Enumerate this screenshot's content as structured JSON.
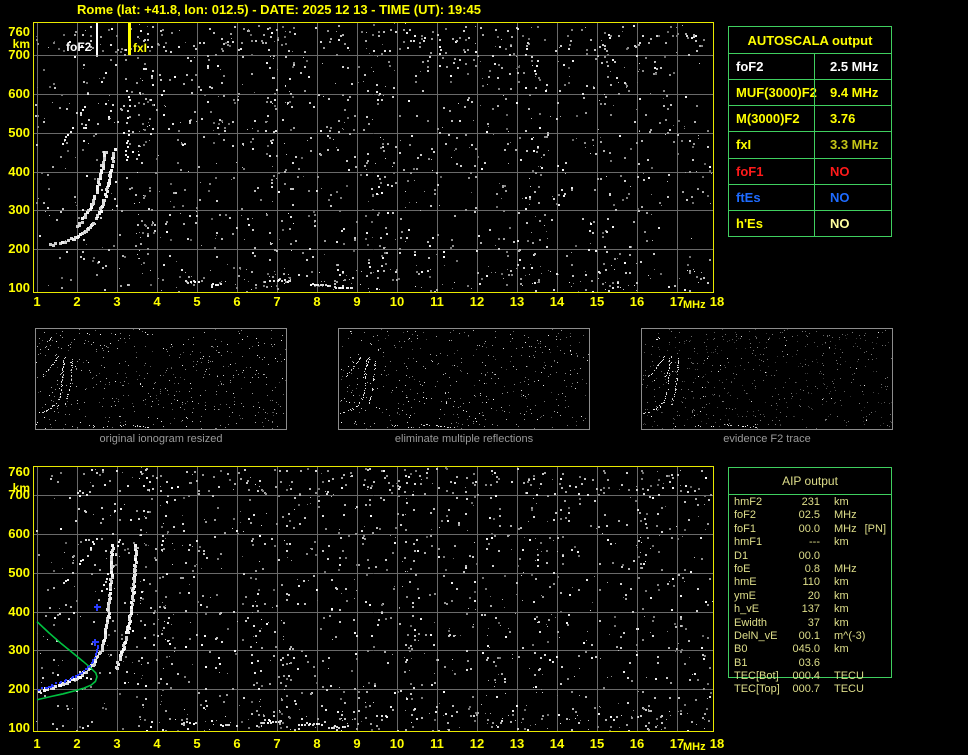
{
  "title": "Rome (lat: +41.8, lon: 012.5) - DATE: 2025 12 13 - TIME (UT): 19:45",
  "colors": {
    "accent_yellow": "#ffff00",
    "plot_border": "#e9e900",
    "grid": "#6a6a6a",
    "table_border": "#3fcf5f",
    "aip_text": "#dede8a",
    "profile_green": "#00c040",
    "scaled_blue": "#2a3cff",
    "caption_gray": "#9a9a9a"
  },
  "plots": {
    "x_ticks": [
      "1",
      "2",
      "3",
      "4",
      "5",
      "6",
      "7",
      "8",
      "9",
      "10",
      "11",
      "12",
      "13",
      "14",
      "15",
      "16",
      "17",
      "18"
    ],
    "x_unit": "MHz",
    "y_ticks": [
      "760",
      "700",
      "600",
      "500",
      "400",
      "300",
      "200",
      "100"
    ],
    "y_unit": "km",
    "top": {
      "markers": [
        {
          "label": "foF2",
          "freq": 2.5,
          "color": "#ffffff",
          "width": 2
        },
        {
          "label": "fxI",
          "freq": 3.3,
          "color": "#ffff00",
          "width": 3
        }
      ],
      "noise_seed": 1337,
      "traces": [
        {
          "w": 3,
          "points": [
            [
              1.32,
              214
            ],
            [
              1.6,
              220
            ],
            [
              1.9,
              230
            ],
            [
              2.15,
              246
            ],
            [
              2.35,
              268
            ],
            [
              2.52,
              296
            ],
            [
              2.66,
              330
            ],
            [
              2.76,
              372
            ],
            [
              2.84,
              420
            ],
            [
              2.9,
              462
            ]
          ]
        },
        {
          "w": 3,
          "points": [
            [
              1.98,
              262
            ],
            [
              2.18,
              288
            ],
            [
              2.36,
              322
            ],
            [
              2.5,
              366
            ],
            [
              2.61,
              418
            ],
            [
              2.68,
              455
            ]
          ]
        },
        {
          "w": 2,
          "dotted": true,
          "points": [
            [
              1.52,
              455
            ],
            [
              1.76,
              496
            ],
            [
              2.0,
              538
            ],
            [
              2.27,
              585
            ]
          ]
        },
        {
          "w": 2,
          "dotted": true,
          "points": [
            [
              2.74,
              533
            ],
            [
              2.82,
              560
            ],
            [
              2.9,
              590
            ]
          ]
        },
        {
          "w": 2,
          "dotted": true,
          "points": [
            [
              3.22,
              432
            ],
            [
              3.25,
              505
            ],
            [
              3.27,
              558
            ],
            [
              3.29,
              596
            ]
          ]
        },
        {
          "w": 2,
          "dotted": true,
          "points": [
            [
              2.14,
              505
            ],
            [
              2.26,
              536
            ]
          ]
        },
        {
          "w": 2,
          "points": [
            [
              4.7,
              118
            ],
            [
              5.05,
              118
            ]
          ]
        },
        {
          "w": 2,
          "points": [
            [
              5.35,
              112
            ],
            [
              5.6,
              112
            ]
          ]
        },
        {
          "w": 2,
          "points": [
            [
              6.7,
              121
            ],
            [
              7.3,
              121
            ]
          ]
        },
        {
          "w": 2,
          "points": [
            [
              7.8,
              112
            ],
            [
              8.3,
              109
            ]
          ]
        },
        {
          "w": 2,
          "points": [
            [
              8.4,
              104
            ],
            [
              8.85,
              104
            ]
          ]
        }
      ]
    },
    "bottom": {
      "noise_seed": 4242,
      "traces": [
        {
          "w": 3,
          "points": [
            [
              1.05,
              198
            ],
            [
              1.35,
              207
            ],
            [
              1.65,
              217
            ],
            [
              1.95,
              231
            ],
            [
              2.2,
              249
            ],
            [
              2.4,
              271
            ],
            [
              2.55,
              299
            ],
            [
              2.66,
              336
            ],
            [
              2.74,
              388
            ],
            [
              2.79,
              445
            ],
            [
              2.83,
              510
            ],
            [
              2.86,
              572
            ]
          ]
        },
        {
          "w": 3,
          "points": [
            [
              2.95,
              256
            ],
            [
              3.1,
              300
            ],
            [
              3.25,
              362
            ],
            [
              3.35,
              432
            ],
            [
              3.41,
              508
            ],
            [
              3.44,
              575
            ]
          ]
        },
        {
          "w": 2,
          "dotted": true,
          "points": [
            [
              1.45,
              452
            ],
            [
              1.8,
              490
            ],
            [
              2.1,
              530
            ],
            [
              2.35,
              565
            ],
            [
              2.48,
              590
            ]
          ]
        },
        {
          "w": 2,
          "dotted": true,
          "points": [
            [
              2.6,
              450
            ],
            [
              2.8,
              505
            ],
            [
              2.95,
              550
            ],
            [
              3.05,
              590
            ]
          ]
        },
        {
          "w": 2,
          "dotted": true,
          "points": [
            [
              1.78,
              690
            ],
            [
              1.92,
              701
            ],
            [
              2.06,
              712
            ]
          ]
        },
        {
          "w": 2,
          "points": [
            [
              4.6,
              115
            ],
            [
              4.95,
              115
            ]
          ]
        },
        {
          "w": 2,
          "points": [
            [
              5.6,
              110
            ],
            [
              5.85,
              110
            ]
          ]
        },
        {
          "w": 2,
          "points": [
            [
              6.6,
              118
            ],
            [
              7.1,
              118
            ]
          ]
        },
        {
          "w": 2,
          "points": [
            [
              7.55,
              112
            ],
            [
              8.1,
              112
            ]
          ]
        },
        {
          "w": 2,
          "points": [
            [
              8.3,
              105
            ],
            [
              8.75,
              105
            ]
          ]
        }
      ],
      "profile": [
        [
          1.0,
          374
        ],
        [
          1.3,
          345
        ],
        [
          1.6,
          318
        ],
        [
          1.9,
          293
        ],
        [
          2.15,
          272
        ],
        [
          2.35,
          254
        ],
        [
          2.47,
          242
        ],
        [
          2.5,
          232
        ],
        [
          2.46,
          220
        ],
        [
          2.36,
          211
        ],
        [
          2.18,
          203
        ],
        [
          1.95,
          196
        ],
        [
          1.65,
          188
        ],
        [
          1.35,
          181
        ],
        [
          1.0,
          173
        ]
      ],
      "scaled": [
        [
          1.05,
          196
        ],
        [
          1.35,
          206
        ],
        [
          1.65,
          216
        ],
        [
          1.95,
          230
        ],
        [
          2.2,
          249
        ],
        [
          2.38,
          268
        ],
        [
          2.47,
          290
        ],
        [
          2.52,
          310
        ]
      ],
      "scaled_marks": [
        [
          2.46,
          321
        ],
        [
          2.5,
          412
        ]
      ]
    }
  },
  "autoscala": {
    "title": "AUTOSCALA output",
    "title_color": "#ffff00",
    "rows": [
      {
        "label": "foF2",
        "value": "2.5 MHz",
        "label_color": "#ffffff",
        "value_color": "#ffffff"
      },
      {
        "label": "MUF(3000)F2",
        "value": "9.4 MHz",
        "label_color": "#ffff00",
        "value_color": "#ffff00"
      },
      {
        "label": "M(3000)F2",
        "value": "3.76",
        "label_color": "#ffff00",
        "value_color": "#ffff00"
      },
      {
        "label": "fxI",
        "value": "3.3 MHz",
        "label_color": "#ffff00",
        "value_color": "#c6c616"
      },
      {
        "label": "foF1",
        "value": "NO",
        "label_color": "#ff1a1a",
        "value_color": "#ff1a1a"
      },
      {
        "label": "ftEs",
        "value": "NO",
        "label_color": "#1e6bff",
        "value_color": "#1e6bff"
      },
      {
        "label": "h'Es",
        "value": "NO",
        "label_color": "#ffff00",
        "value_color": "#ffff9e"
      }
    ]
  },
  "thumbnails": [
    {
      "caption": "original ionogram resized"
    },
    {
      "caption": "eliminate multiple reflections"
    },
    {
      "caption": "evidence F2 trace"
    }
  ],
  "aip": {
    "title": "AIP output",
    "rows": [
      {
        "label": "hmF2",
        "value": "231",
        "unit": "km",
        "note": ""
      },
      {
        "label": "foF2",
        "value": "02.5",
        "unit": "MHz",
        "note": ""
      },
      {
        "label": "foF1",
        "value": "00.0",
        "unit": "MHz",
        "note": "[PN]"
      },
      {
        "label": "hmF1",
        "value": "---",
        "unit": "km",
        "note": ""
      },
      {
        "label": "D1",
        "value": "00.0",
        "unit": "",
        "note": ""
      },
      {
        "label": "foE",
        "value": "0.8",
        "unit": "MHz",
        "note": ""
      },
      {
        "label": "hmE",
        "value": "110",
        "unit": "km",
        "note": ""
      },
      {
        "label": "ymE",
        "value": "20",
        "unit": "km",
        "note": ""
      },
      {
        "label": "h_vE",
        "value": "137",
        "unit": "km",
        "note": ""
      },
      {
        "label": "Ewidth",
        "value": "37",
        "unit": "km",
        "note": ""
      },
      {
        "label": "DelN_vE",
        "value": "00.1",
        "unit": "m^(-3)",
        "note": ""
      },
      {
        "label": "B0",
        "value": "045.0",
        "unit": "km",
        "note": ""
      },
      {
        "label": "B1",
        "value": "03.6",
        "unit": "",
        "note": ""
      },
      {
        "label": "TEC[Bot]",
        "value": "000.4",
        "unit": "TECU",
        "note": ""
      },
      {
        "label": "TEC[Top]",
        "value": "000.7",
        "unit": "TECU",
        "note": ""
      }
    ]
  }
}
